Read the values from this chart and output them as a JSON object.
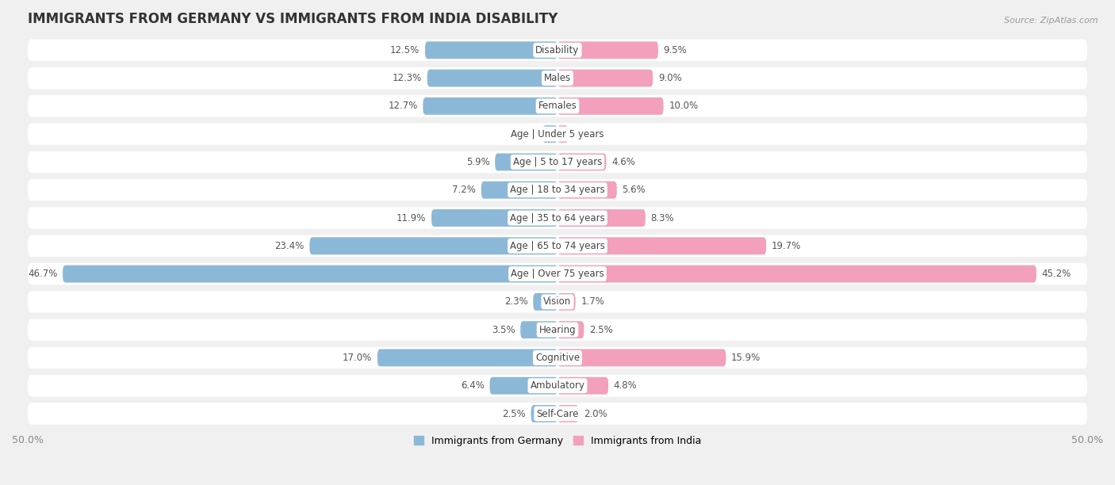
{
  "title": "IMMIGRANTS FROM GERMANY VS IMMIGRANTS FROM INDIA DISABILITY",
  "source": "Source: ZipAtlas.com",
  "categories": [
    "Disability",
    "Males",
    "Females",
    "Age | Under 5 years",
    "Age | 5 to 17 years",
    "Age | 18 to 34 years",
    "Age | 35 to 64 years",
    "Age | 65 to 74 years",
    "Age | Over 75 years",
    "Vision",
    "Hearing",
    "Cognitive",
    "Ambulatory",
    "Self-Care"
  ],
  "germany_values": [
    12.5,
    12.3,
    12.7,
    1.4,
    5.9,
    7.2,
    11.9,
    23.4,
    46.7,
    2.3,
    3.5,
    17.0,
    6.4,
    2.5
  ],
  "india_values": [
    9.5,
    9.0,
    10.0,
    1.0,
    4.6,
    5.6,
    8.3,
    19.7,
    45.2,
    1.7,
    2.5,
    15.9,
    4.8,
    2.0
  ],
  "germany_color": "#8cb8d8",
  "india_color": "#f2a0bb",
  "background_color": "#f0f0f0",
  "row_color": "#e8e8e8",
  "bar_bg_color": "#dde8f0",
  "xlim": 50.0,
  "legend_germany": "Immigrants from Germany",
  "legend_india": "Immigrants from India",
  "title_fontsize": 12,
  "label_fontsize": 8.5,
  "value_fontsize": 8.5,
  "legend_fontsize": 9
}
